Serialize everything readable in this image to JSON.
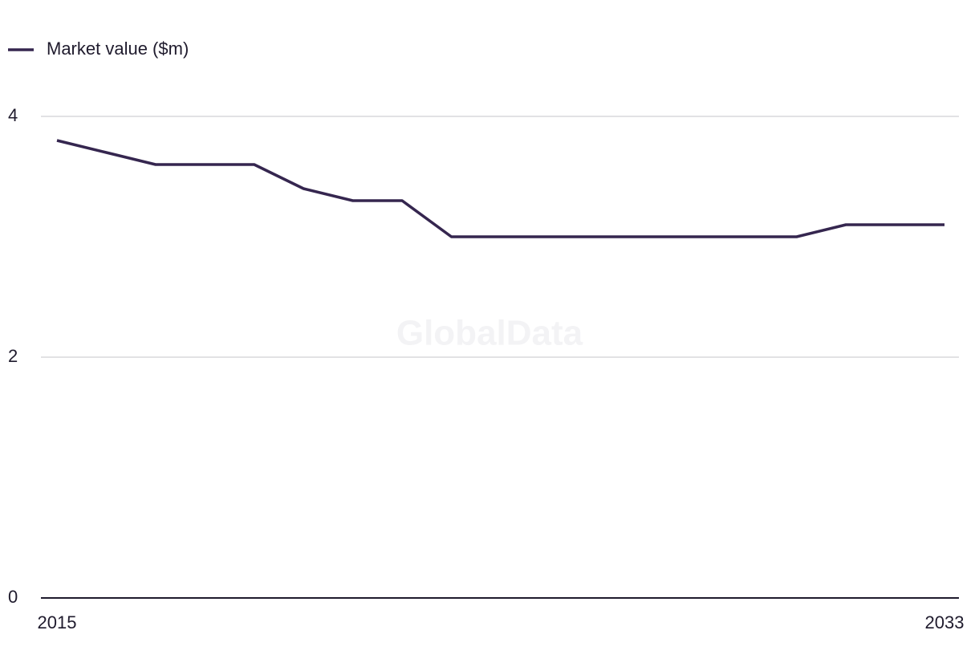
{
  "chart_data": {
    "type": "line",
    "watermark": "GlobalData",
    "x": [
      2015,
      2016,
      2017,
      2018,
      2019,
      2020,
      2021,
      2022,
      2023,
      2024,
      2025,
      2026,
      2027,
      2028,
      2029,
      2030,
      2031,
      2032,
      2033
    ],
    "series": [
      {
        "name": "Market value ($m)",
        "color": "#35264f",
        "values": [
          3.8,
          3.7,
          3.6,
          3.6,
          3.6,
          3.4,
          3.3,
          3.3,
          3.0,
          3.0,
          3.0,
          3.0,
          3.0,
          3.0,
          3.0,
          3.0,
          3.1,
          3.1,
          3.1
        ]
      }
    ],
    "xlim": [
      2015,
      2033
    ],
    "xticks": [
      2015,
      2033
    ],
    "ylim": [
      0,
      4
    ],
    "yticks": [
      0,
      2,
      4
    ],
    "grid": true,
    "legend": "top-left"
  }
}
